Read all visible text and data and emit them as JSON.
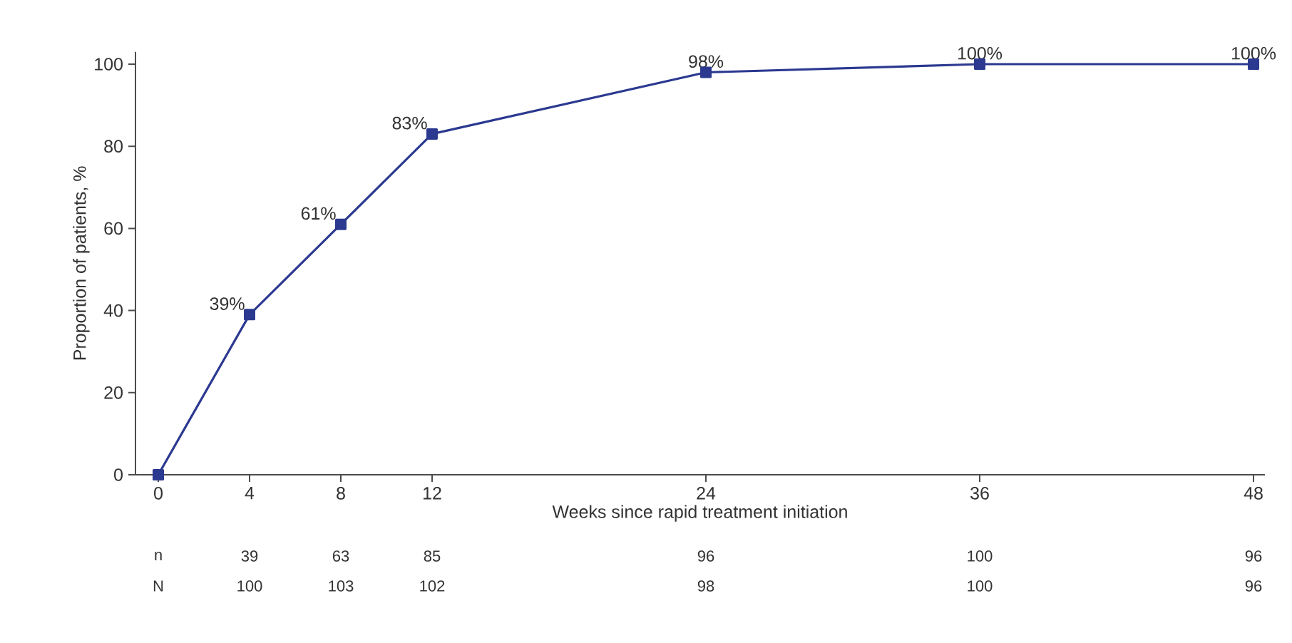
{
  "chart_data": {
    "type": "line",
    "xlabel": "Weeks since rapid treatment initiation",
    "ylabel": "Proportion of patients, %",
    "x": [
      0,
      4,
      8,
      12,
      24,
      36,
      48
    ],
    "series": [
      {
        "color": "#2b3990",
        "values": [
          0,
          39,
          61,
          83,
          98,
          100,
          100
        ],
        "value_labels": [
          null,
          "39%",
          "61%",
          "83%",
          "98%",
          "100%",
          "100%"
        ]
      }
    ],
    "xlim": [
      -1,
      48.5
    ],
    "ylim": [
      0,
      103
    ],
    "xticks": [
      0,
      4,
      8,
      12,
      24,
      36,
      48
    ],
    "yticks": [
      0,
      20,
      40,
      60,
      80,
      100
    ],
    "marker": "square",
    "line_style": "solid",
    "grid": false,
    "annotations": [
      "n",
      "39",
      "63",
      "85",
      "96",
      "100",
      "96",
      "N",
      "100",
      "103",
      "102",
      "98",
      "100",
      "96"
    ]
  }
}
